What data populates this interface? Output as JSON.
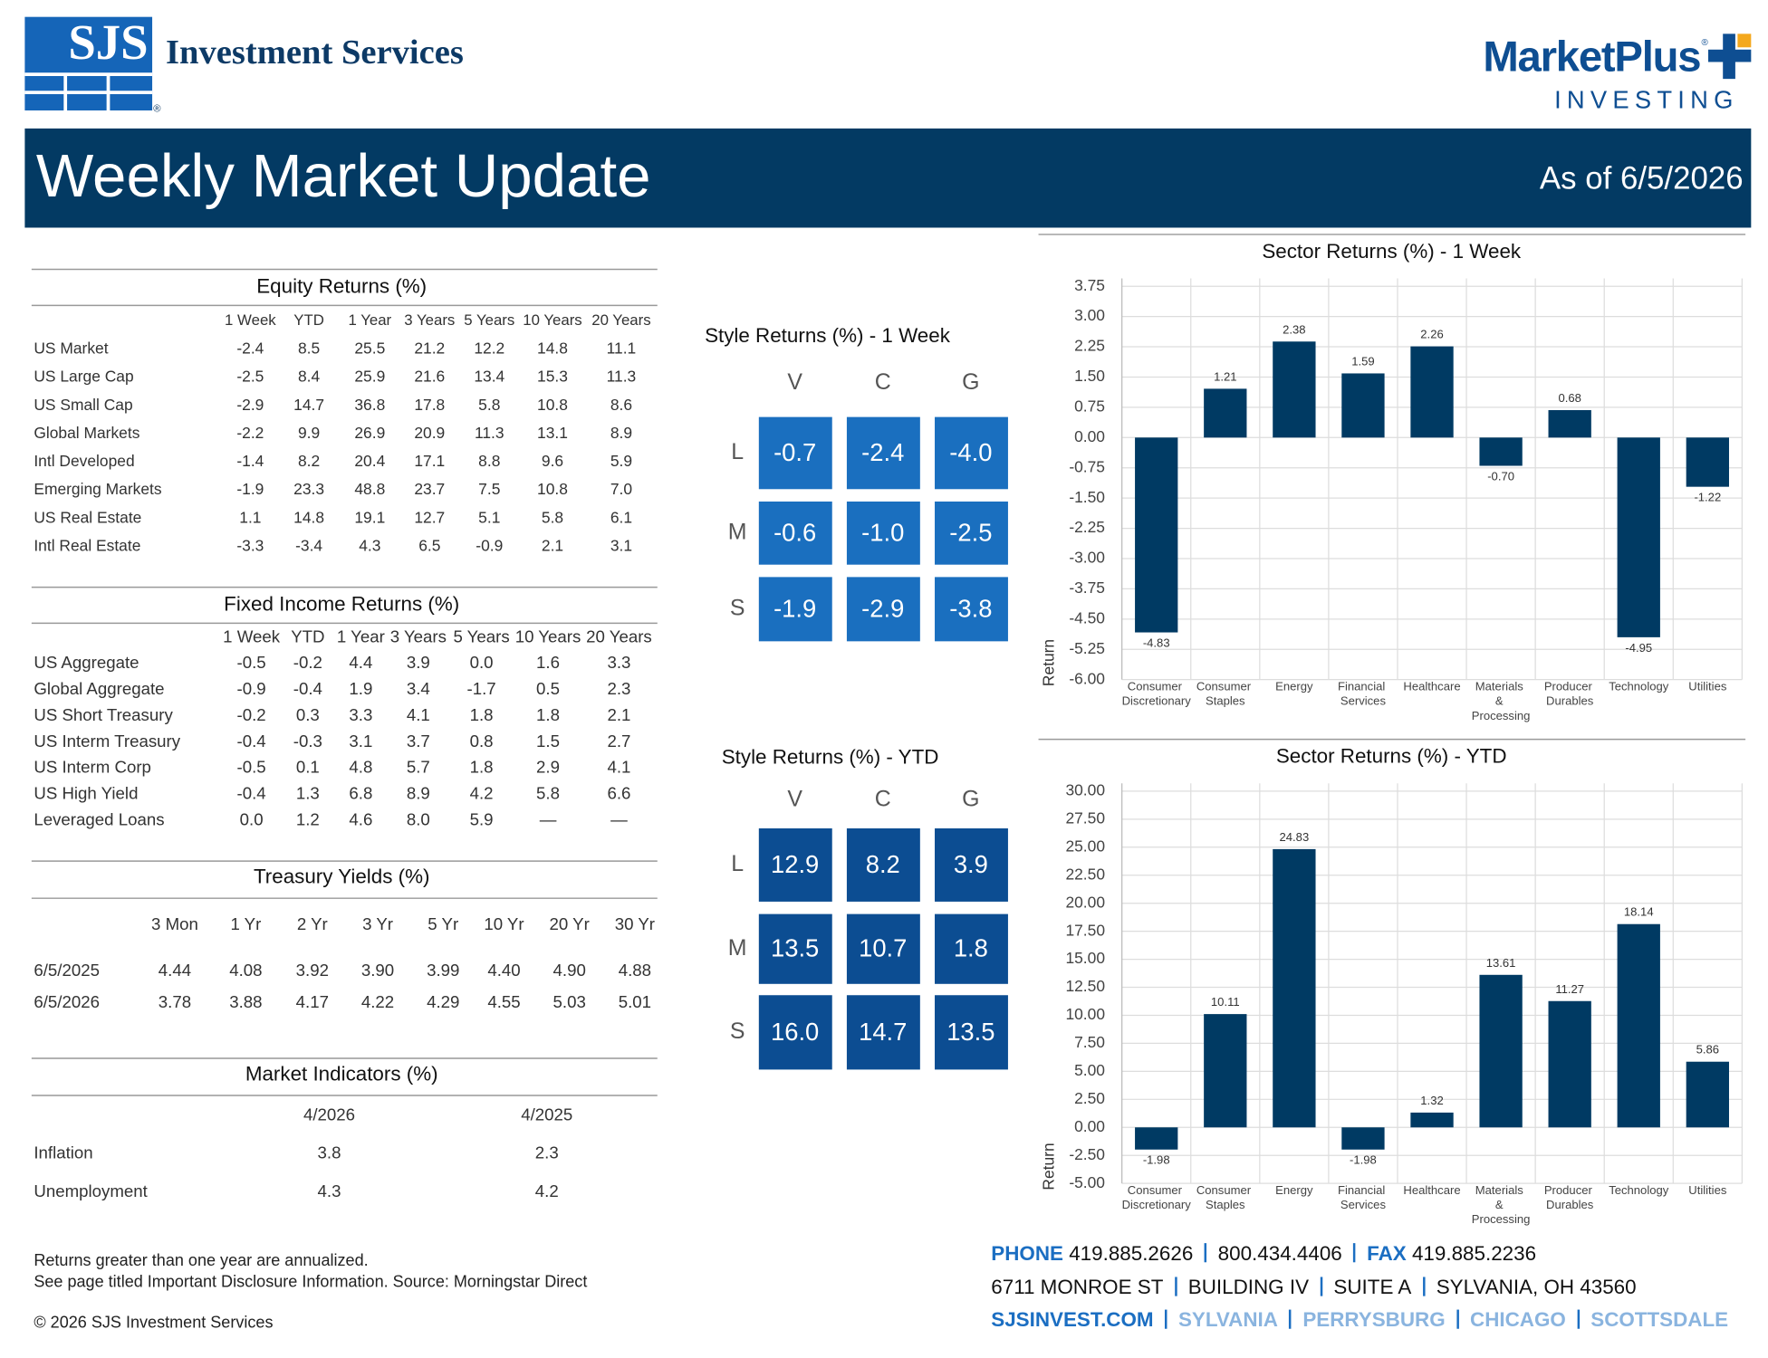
{
  "header": {
    "logo": "SJS",
    "company": "Investment Services",
    "registered": "®",
    "partner": "MarketPlus",
    "partner_registered": "®",
    "partner_sub": "INVESTING",
    "title": "Weekly Market Update",
    "as_of": "As of 6/5/2026"
  },
  "equity": {
    "title": "Equity Returns (%)",
    "columns": [
      "1 Week",
      "YTD",
      "1 Year",
      "3 Years",
      "5 Years",
      "10 Years",
      "20 Years"
    ],
    "rows": [
      {
        "label": "US Market",
        "values": [
          "-2.4",
          "8.5",
          "25.5",
          "21.2",
          "12.2",
          "14.8",
          "11.1"
        ]
      },
      {
        "label": "US Large Cap",
        "values": [
          "-2.5",
          "8.4",
          "25.9",
          "21.6",
          "13.4",
          "15.3",
          "11.3"
        ]
      },
      {
        "label": "US Small Cap",
        "values": [
          "-2.9",
          "14.7",
          "36.8",
          "17.8",
          "5.8",
          "10.8",
          "8.6"
        ]
      },
      {
        "label": "Global Markets",
        "values": [
          "-2.2",
          "9.9",
          "26.9",
          "20.9",
          "11.3",
          "13.1",
          "8.9"
        ]
      },
      {
        "label": "Intl Developed",
        "values": [
          "-1.4",
          "8.2",
          "20.4",
          "17.1",
          "8.8",
          "9.6",
          "5.9"
        ]
      },
      {
        "label": "Emerging Markets",
        "values": [
          "-1.9",
          "23.3",
          "48.8",
          "23.7",
          "7.5",
          "10.8",
          "7.0"
        ]
      },
      {
        "label": "US Real Estate",
        "values": [
          "1.1",
          "14.8",
          "19.1",
          "12.7",
          "5.1",
          "5.8",
          "6.1"
        ]
      },
      {
        "label": "Intl Real Estate",
        "values": [
          "-3.3",
          "-3.4",
          "4.3",
          "6.5",
          "-0.9",
          "2.1",
          "3.1"
        ]
      }
    ]
  },
  "fixed_income": {
    "title": "Fixed Income Returns (%)",
    "columns": [
      "1 Week",
      "YTD",
      "1 Year",
      "3 Years",
      "5 Years",
      "10 Years",
      "20 Years"
    ],
    "rows": [
      {
        "label": "US Aggregate",
        "values": [
          "-0.5",
          "-0.2",
          "4.4",
          "3.9",
          "0.0",
          "1.6",
          "3.3"
        ]
      },
      {
        "label": "Global Aggregate",
        "values": [
          "-0.9",
          "-0.4",
          "1.9",
          "3.4",
          "-1.7",
          "0.5",
          "2.3"
        ]
      },
      {
        "label": "US Short Treasury",
        "values": [
          "-0.2",
          "0.3",
          "3.3",
          "4.1",
          "1.8",
          "1.8",
          "2.1"
        ]
      },
      {
        "label": "US Interm Treasury",
        "values": [
          "-0.4",
          "-0.3",
          "3.1",
          "3.7",
          "0.8",
          "1.5",
          "2.7"
        ]
      },
      {
        "label": "US Interm Corp",
        "values": [
          "-0.5",
          "0.1",
          "4.8",
          "5.7",
          "1.8",
          "2.9",
          "4.1"
        ]
      },
      {
        "label": "US High Yield",
        "values": [
          "-0.4",
          "1.3",
          "6.8",
          "8.9",
          "4.2",
          "5.8",
          "6.6"
        ]
      },
      {
        "label": "Leveraged Loans",
        "values": [
          "0.0",
          "1.2",
          "4.6",
          "8.0",
          "5.9",
          "—",
          "—"
        ]
      }
    ]
  },
  "treasury": {
    "title": "Treasury Yields (%)",
    "columns": [
      "3 Mon",
      "1 Yr",
      "2 Yr",
      "3 Yr",
      "5 Yr",
      "10 Yr",
      "20 Yr",
      "30 Yr"
    ],
    "rows": [
      {
        "label": "6/5/2025",
        "values": [
          "4.44",
          "4.08",
          "3.92",
          "3.90",
          "3.99",
          "4.40",
          "4.90",
          "4.88"
        ]
      },
      {
        "label": "6/5/2026",
        "values": [
          "3.78",
          "3.88",
          "4.17",
          "4.22",
          "4.29",
          "4.55",
          "5.03",
          "5.01"
        ]
      }
    ]
  },
  "indicators": {
    "title": "Market Indicators (%)",
    "columns": [
      "4/2026",
      "4/2025"
    ],
    "rows": [
      {
        "label": "Inflation",
        "values": [
          "3.8",
          "2.3"
        ]
      },
      {
        "label": "Unemployment",
        "values": [
          "4.3",
          "4.2"
        ]
      }
    ]
  },
  "style": [
    {
      "title": "Style Returns (%)  - 1 Week",
      "columns": [
        "V",
        "C",
        "G"
      ],
      "rows": [
        "L",
        "M",
        "S"
      ],
      "color": "#1a6fbf",
      "values": [
        [
          "-0.7",
          "-2.4",
          "-4.0"
        ],
        [
          "-0.6",
          "-1.0",
          "-2.5"
        ],
        [
          "-1.9",
          "-2.9",
          "-3.8"
        ]
      ]
    },
    {
      "title": "Style Returns (%)  - YTD",
      "columns": [
        "V",
        "C",
        "G"
      ],
      "rows": [
        "L",
        "M",
        "S"
      ],
      "color": "#0c4d92",
      "values": [
        [
          "12.9",
          "8.2",
          "3.9"
        ],
        [
          "13.5",
          "10.7",
          "1.8"
        ],
        [
          "16.0",
          "14.7",
          "13.5"
        ]
      ]
    }
  ],
  "chart_data": [
    {
      "type": "bar",
      "title": "Sector Returns (%)  - 1 Week",
      "ylabel": "Return",
      "color": "#003a63",
      "grid": true,
      "categories": [
        "Consumer Discretionary",
        "Consumer Staples",
        "Energy",
        "Financial Services",
        "Healthcare",
        "Materials & Processing",
        "Producer Durables",
        "Technology",
        "Utilities"
      ],
      "values": [
        -4.83,
        1.21,
        2.38,
        1.59,
        2.26,
        -0.7,
        0.68,
        -4.95,
        -1.22
      ],
      "value_labels": [
        "-4.83",
        "1.21",
        "2.38",
        "1.59",
        "2.26",
        "-0.70",
        "0.68",
        "-4.95",
        "-1.22"
      ],
      "ylim": [
        -6,
        3.75
      ],
      "yticks": [
        3.75,
        {
          "value": 3,
          "label": "3.00"
        },
        2.25,
        {
          "value": 1.5,
          "label": "1.50"
        },
        0.75,
        {
          "value": 0,
          "label": "0.00"
        },
        -0.75,
        {
          "value": -1.5,
          "label": "-1.50"
        },
        -2.25,
        {
          "value": -3,
          "label": "-3.00"
        },
        -3.75,
        {
          "value": -4.5,
          "label": "-4.50"
        },
        -5.25,
        {
          "value": -6,
          "label": "-6.00"
        }
      ]
    },
    {
      "type": "bar",
      "title": "Sector Returns (%)  - YTD",
      "ylabel": "Return",
      "color": "#003a63",
      "grid": true,
      "categories": [
        "Consumer Discretionary",
        "Consumer Staples",
        "Energy",
        "Financial Services",
        "Healthcare",
        "Materials & Processing",
        "Producer Durables",
        "Technology",
        "Utilities"
      ],
      "values": [
        -1.98,
        10.11,
        24.83,
        -1.98,
        1.32,
        13.61,
        11.27,
        18.14,
        5.86
      ],
      "ylim": [
        -5,
        30
      ],
      "yticks": [
        {
          "value": 30,
          "label": "30.00"
        },
        {
          "value": 27.5,
          "label": "27.50"
        },
        {
          "value": 25,
          "label": "25.00"
        },
        {
          "value": 22.5,
          "label": "22.50"
        },
        {
          "value": 20,
          "label": "20.00"
        },
        {
          "value": 17.5,
          "label": "17.50"
        },
        {
          "value": 15,
          "label": "15.00"
        },
        {
          "value": 12.5,
          "label": "12.50"
        },
        {
          "value": 10,
          "label": "10.00"
        },
        {
          "value": 7.5,
          "label": "7.50"
        },
        {
          "value": 5,
          "label": "5.00"
        },
        {
          "value": 2.5,
          "label": "2.50"
        },
        {
          "value": 0,
          "label": "0.00"
        },
        {
          "value": -2.5,
          "label": "-2.50"
        },
        {
          "value": -5,
          "label": "-5.00"
        }
      ]
    }
  ],
  "footer": {
    "notes": [
      "Returns greater than one year are annualized.",
      "See page titled Important Disclosure Information. Source: Morningstar Direct"
    ],
    "copyright": "© 2026 SJS Investment Services",
    "contact": {
      "phone_label": "PHONE",
      "phones": [
        "419.885.2626",
        "800.434.4406"
      ],
      "fax_label": "FAX",
      "fax": "419.885.2236",
      "address": [
        "6711 MONROE ST",
        "BUILDING IV",
        "SUITE A",
        "SYLVANIA, OH 43560"
      ],
      "website": "SJSINVEST.COM",
      "locations": [
        "SYLVANIA",
        "PERRYSBURG",
        "CHICAGO",
        "SCOTTSDALE"
      ]
    }
  }
}
